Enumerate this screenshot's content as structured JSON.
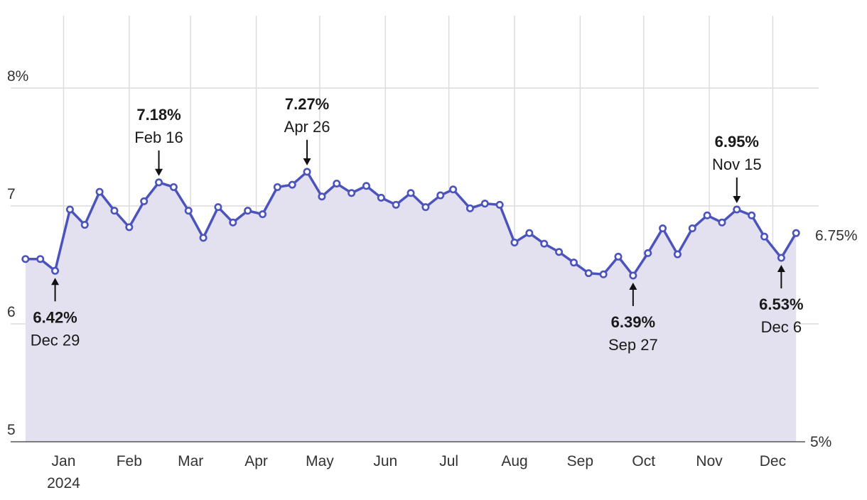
{
  "chart_data": {
    "type": "area",
    "title": "",
    "xlabel": "",
    "ylabel": "",
    "ylim": [
      5,
      8.8
    ],
    "xlim": [
      "2023-12-07",
      "2024-12-23"
    ],
    "grid": true,
    "colors": {
      "line": "#4b53bc",
      "fill": "#e3e1ef",
      "grid": "#dcdcdc",
      "axis": "#555555"
    },
    "y_ticks": [
      {
        "value": 5,
        "label": "5"
      },
      {
        "value": 6,
        "label": "6"
      },
      {
        "value": 7,
        "label": "7"
      },
      {
        "value": 8,
        "label": "8%"
      }
    ],
    "right_labels": [
      {
        "value": 6.75,
        "label": "6.75%"
      },
      {
        "value": 5,
        "label": "5%"
      }
    ],
    "x_ticks": [
      {
        "date": "2024-01-01",
        "label": "Jan",
        "sublabel": "2024"
      },
      {
        "date": "2024-02-01",
        "label": "Feb"
      },
      {
        "date": "2024-03-01",
        "label": "Mar"
      },
      {
        "date": "2024-04-01",
        "label": "Apr"
      },
      {
        "date": "2024-05-01",
        "label": "May"
      },
      {
        "date": "2024-06-01",
        "label": "Jun"
      },
      {
        "date": "2024-07-01",
        "label": "Jul"
      },
      {
        "date": "2024-08-01",
        "label": "Aug"
      },
      {
        "date": "2024-09-01",
        "label": "Sep"
      },
      {
        "date": "2024-10-01",
        "label": "Oct"
      },
      {
        "date": "2024-11-01",
        "label": "Nov"
      },
      {
        "date": "2024-12-01",
        "label": "Dec"
      }
    ],
    "series": [
      {
        "x": [
          "2023-12-14",
          "2023-12-21",
          "2023-12-28",
          "2024-01-04",
          "2024-01-11",
          "2024-01-18",
          "2024-01-25",
          "2024-02-01",
          "2024-02-08",
          "2024-02-15",
          "2024-02-22",
          "2024-02-29",
          "2024-03-07",
          "2024-03-14",
          "2024-03-21",
          "2024-03-28",
          "2024-04-04",
          "2024-04-11",
          "2024-04-18",
          "2024-04-25",
          "2024-05-02",
          "2024-05-09",
          "2024-05-16",
          "2024-05-23",
          "2024-05-30",
          "2024-06-06",
          "2024-06-13",
          "2024-06-20",
          "2024-06-27",
          "2024-07-03",
          "2024-07-11",
          "2024-07-18",
          "2024-07-25",
          "2024-08-01",
          "2024-08-08",
          "2024-08-15",
          "2024-08-22",
          "2024-08-29",
          "2024-09-05",
          "2024-09-12",
          "2024-09-19",
          "2024-09-26",
          "2024-10-03",
          "2024-10-10",
          "2024-10-17",
          "2024-10-24",
          "2024-10-31",
          "2024-11-07",
          "2024-11-14",
          "2024-11-21",
          "2024-11-27",
          "2024-12-05",
          "2024-12-12"
        ],
        "values": [
          6.55,
          6.55,
          6.45,
          6.97,
          6.84,
          7.12,
          6.96,
          6.82,
          7.04,
          7.2,
          7.16,
          6.96,
          6.73,
          6.99,
          6.86,
          6.96,
          6.93,
          7.16,
          7.18,
          7.29,
          7.08,
          7.19,
          7.11,
          7.17,
          7.07,
          7.01,
          7.11,
          6.99,
          7.09,
          7.14,
          6.98,
          7.02,
          7.01,
          6.69,
          6.77,
          6.68,
          6.61,
          6.52,
          6.43,
          6.42,
          6.57,
          6.41,
          6.6,
          6.81,
          6.59,
          6.81,
          6.92,
          6.86,
          6.97,
          6.92,
          6.74,
          6.56,
          6.77
        ]
      }
    ],
    "annotations": [
      {
        "x": "2023-12-28",
        "y": 6.45,
        "value": "6.42%",
        "date": "Dec 29",
        "placement": "below"
      },
      {
        "x": "2024-02-15",
        "y": 7.2,
        "value": "7.18%",
        "date": "Feb 16",
        "placement": "above"
      },
      {
        "x": "2024-04-25",
        "y": 7.29,
        "value": "7.27%",
        "date": "Apr 26",
        "placement": "above"
      },
      {
        "x": "2024-09-26",
        "y": 6.41,
        "value": "6.39%",
        "date": "Sep 27",
        "placement": "below"
      },
      {
        "x": "2024-11-14",
        "y": 6.97,
        "value": "6.95%",
        "date": "Nov 15",
        "placement": "above"
      },
      {
        "x": "2024-12-05",
        "y": 6.56,
        "value": "6.53%",
        "date": "Dec 6",
        "placement": "below"
      }
    ]
  }
}
